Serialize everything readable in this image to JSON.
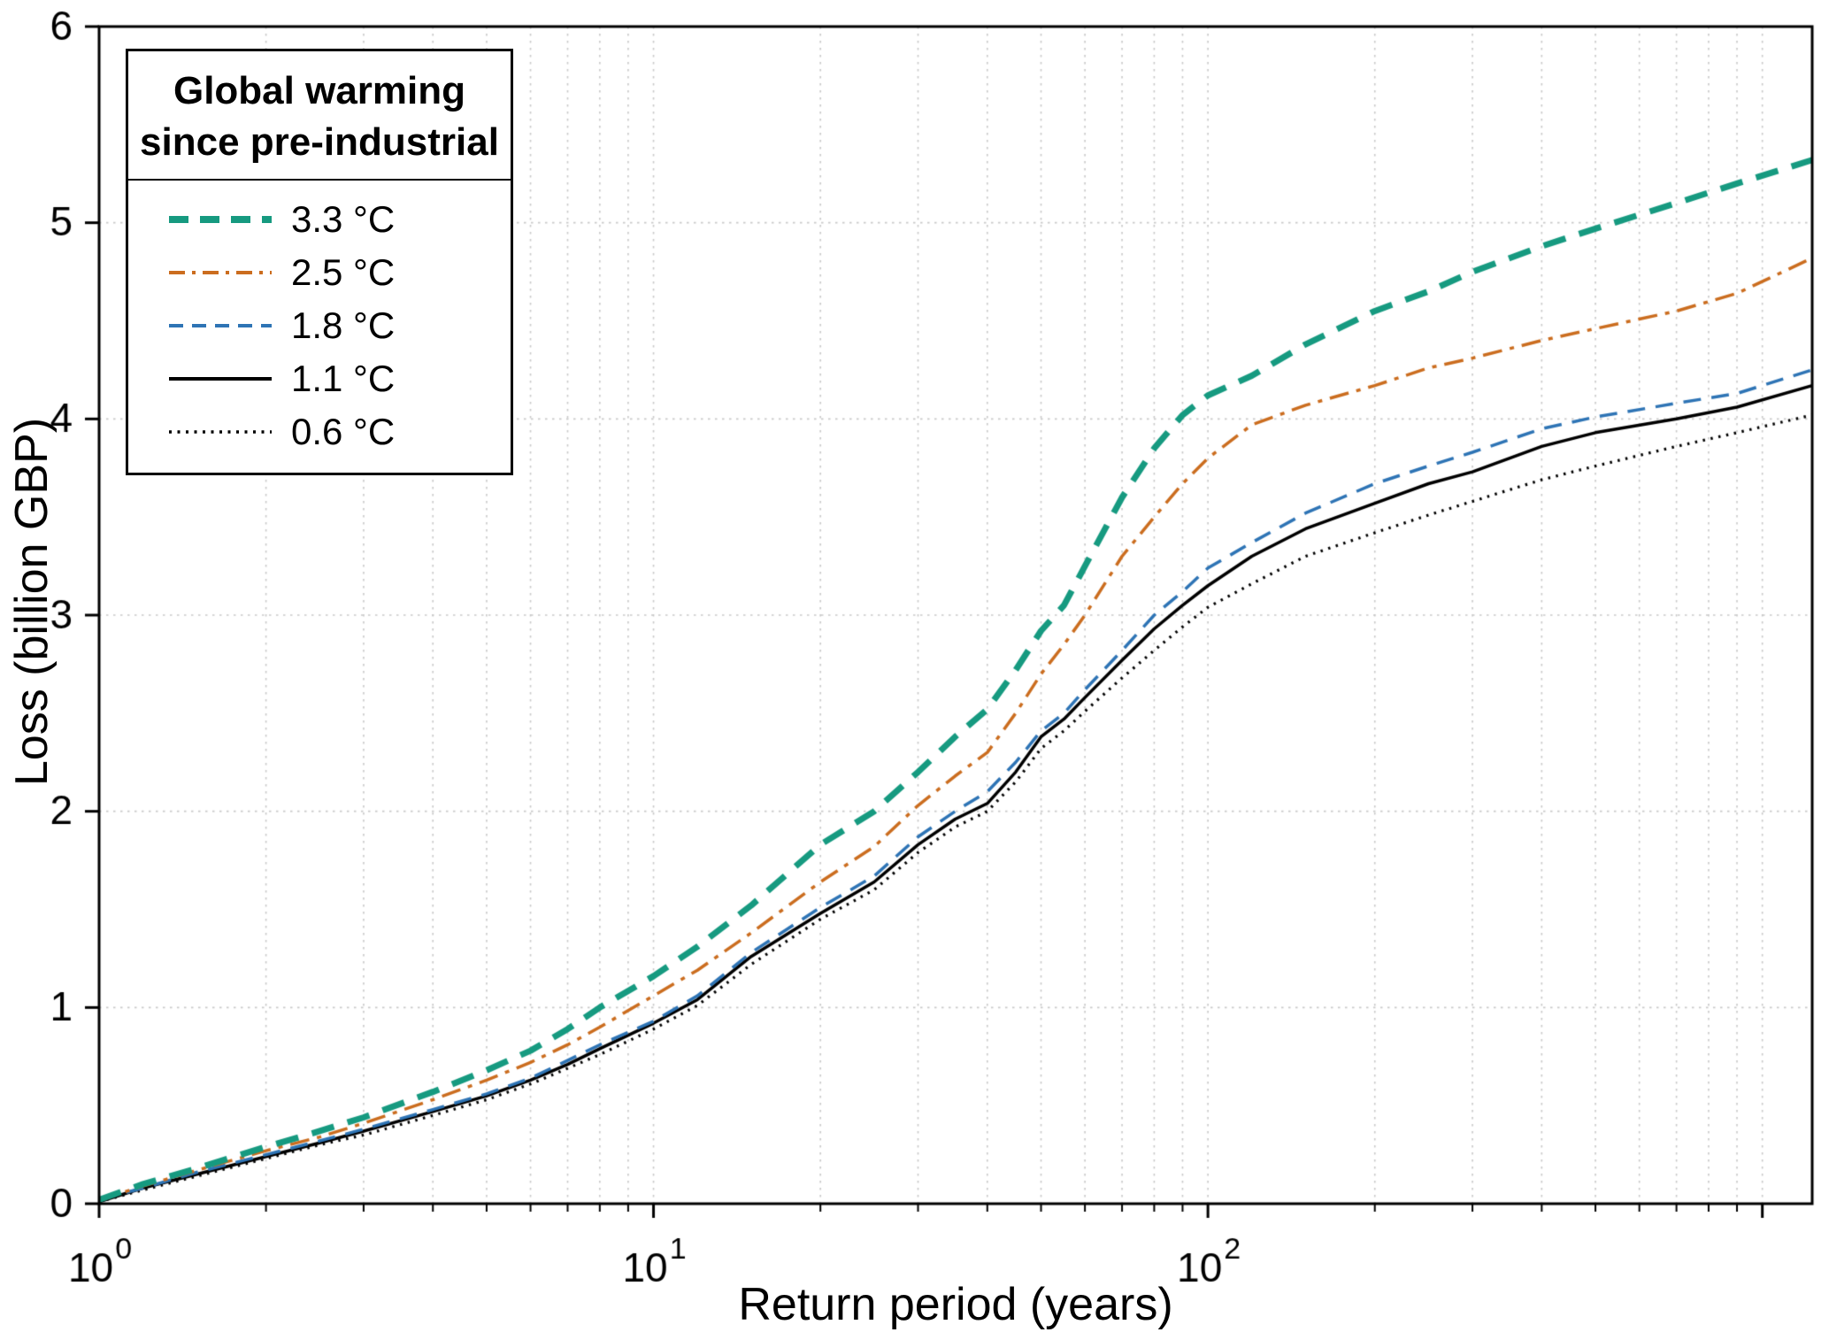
{
  "chart_data": {
    "type": "line",
    "title": "",
    "xlabel": "Return period (years)",
    "ylabel": "Loss (billion GBP)",
    "x_scale": "log10",
    "xlim": [
      1,
      1230
    ],
    "ylim": [
      0,
      6
    ],
    "y_ticks": [
      0,
      1,
      2,
      3,
      4,
      5,
      6
    ],
    "x_ticks": [
      {
        "value": 1,
        "base": "10",
        "exp": "0"
      },
      {
        "value": 10,
        "base": "10",
        "exp": "1"
      },
      {
        "value": 100,
        "base": "10",
        "exp": "2"
      }
    ],
    "grid": "minor-dotted",
    "grid_color": "#c9c9c9",
    "axis_color": "#000000",
    "legend": {
      "title_line1": "Global warming",
      "title_line2": "since pre-industrial",
      "position": "top-left"
    },
    "x": [
      1,
      1.2,
      1.5,
      2,
      2.5,
      3,
      4,
      5,
      6,
      7,
      8,
      10,
      12,
      15,
      20,
      25,
      30,
      35,
      40,
      45,
      50,
      55,
      60,
      70,
      80,
      90,
      100,
      120,
      150,
      200,
      250,
      300,
      400,
      500,
      700,
      900,
      1230
    ],
    "series": [
      {
        "name": "3.3 °C",
        "color": "#169a80",
        "dash": "thick-dashed",
        "values": [
          0.02,
          0.1,
          0.18,
          0.29,
          0.37,
          0.44,
          0.57,
          0.68,
          0.78,
          0.89,
          1.0,
          1.16,
          1.31,
          1.52,
          1.83,
          2.0,
          2.2,
          2.38,
          2.52,
          2.72,
          2.92,
          3.05,
          3.25,
          3.6,
          3.85,
          4.02,
          4.12,
          4.22,
          4.38,
          4.55,
          4.65,
          4.75,
          4.88,
          4.97,
          5.1,
          5.2,
          5.32
        ]
      },
      {
        "name": "2.5 °C",
        "color": "#cb6d1f",
        "dash": "dash-dot",
        "values": [
          0.02,
          0.09,
          0.17,
          0.27,
          0.34,
          0.41,
          0.53,
          0.63,
          0.72,
          0.81,
          0.9,
          1.06,
          1.19,
          1.38,
          1.64,
          1.82,
          2.03,
          2.18,
          2.3,
          2.5,
          2.7,
          2.85,
          3.0,
          3.3,
          3.5,
          3.67,
          3.8,
          3.97,
          4.07,
          4.17,
          4.26,
          4.31,
          4.4,
          4.46,
          4.55,
          4.64,
          4.82
        ]
      },
      {
        "name": "1.8 °C",
        "color": "#2e74b5",
        "dash": "dashed",
        "values": [
          0.02,
          0.08,
          0.16,
          0.25,
          0.32,
          0.38,
          0.48,
          0.56,
          0.64,
          0.73,
          0.81,
          0.93,
          1.06,
          1.28,
          1.51,
          1.67,
          1.87,
          2.0,
          2.1,
          2.25,
          2.41,
          2.5,
          2.62,
          2.82,
          3.0,
          3.12,
          3.24,
          3.37,
          3.52,
          3.67,
          3.76,
          3.83,
          3.95,
          4.01,
          4.08,
          4.13,
          4.25
        ]
      },
      {
        "name": "1.1 °C",
        "color": "#000000",
        "dash": "solid",
        "values": [
          0.01,
          0.08,
          0.15,
          0.24,
          0.31,
          0.37,
          0.47,
          0.55,
          0.63,
          0.71,
          0.79,
          0.92,
          1.04,
          1.26,
          1.48,
          1.64,
          1.83,
          1.96,
          2.04,
          2.2,
          2.38,
          2.47,
          2.58,
          2.77,
          2.93,
          3.05,
          3.15,
          3.3,
          3.44,
          3.57,
          3.67,
          3.73,
          3.86,
          3.93,
          4.0,
          4.06,
          4.17
        ]
      },
      {
        "name": "0.6 °C",
        "color": "#000000",
        "dash": "dotted",
        "values": [
          0.01,
          0.07,
          0.14,
          0.23,
          0.3,
          0.35,
          0.45,
          0.53,
          0.61,
          0.69,
          0.76,
          0.89,
          1.01,
          1.22,
          1.45,
          1.6,
          1.79,
          1.92,
          2.0,
          2.15,
          2.32,
          2.41,
          2.51,
          2.68,
          2.82,
          2.94,
          3.04,
          3.16,
          3.3,
          3.42,
          3.51,
          3.58,
          3.69,
          3.76,
          3.86,
          3.93,
          4.02
        ]
      }
    ]
  }
}
